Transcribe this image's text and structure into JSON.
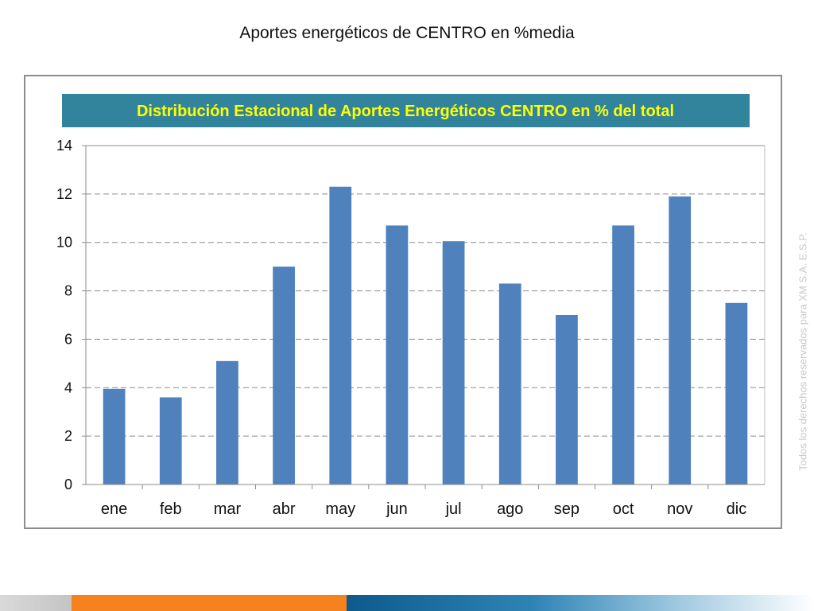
{
  "slide": {
    "title": "Aportes energéticos de CENTRO en %media",
    "side_note": "Todos los derechos reservados para XM S.A. E.S.P."
  },
  "colors": {
    "bar": "#4f81bd",
    "title_band": "#31849b",
    "title_text": "#ffff00",
    "footer_gray": "#c4c4c4",
    "footer_orange": "#f5821f",
    "footer_blue": "#0d5a8c"
  },
  "chart_data": {
    "type": "bar",
    "title": "Distribución Estacional de Aportes Energéticos CENTRO en % del total",
    "xlabel": "",
    "ylabel": "",
    "categories": [
      "ene",
      "feb",
      "mar",
      "abr",
      "may",
      "jun",
      "jul",
      "ago",
      "sep",
      "oct",
      "nov",
      "dic"
    ],
    "values": [
      3.95,
      3.6,
      5.1,
      9.0,
      12.3,
      10.7,
      10.05,
      8.3,
      7.0,
      10.7,
      11.9,
      7.5
    ],
    "ylim": [
      0,
      14
    ],
    "yticks": [
      0,
      2,
      4,
      6,
      8,
      10,
      12,
      14
    ],
    "grid": "horizontal dashed",
    "legend": "none"
  }
}
